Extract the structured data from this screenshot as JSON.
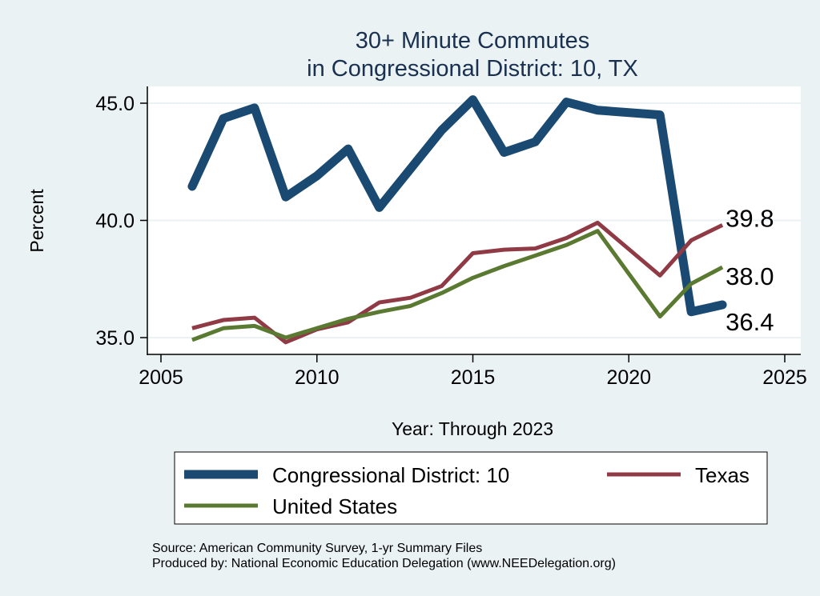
{
  "chart_data": {
    "type": "line",
    "title": [
      "30+ Minute Commutes",
      "in Congressional District:  10, TX"
    ],
    "xlabel": "Year: Through 2023",
    "ylabel": "Percent",
    "xlim": [
      2005,
      2025
    ],
    "ylim": [
      35,
      45
    ],
    "xticks": [
      2005,
      2010,
      2015,
      2020,
      2025
    ],
    "yticks": [
      "35.0",
      "40.0",
      "45.0"
    ],
    "grid": true,
    "legend_position": "bottom",
    "x": [
      2006,
      2007,
      2008,
      2009,
      2010,
      2011,
      2012,
      2013,
      2014,
      2015,
      2016,
      2017,
      2018,
      2019,
      2021,
      2022,
      2023
    ],
    "series": [
      {
        "name": "Congressional District:  10",
        "color": "#1a4a72",
        "values": [
          41.45,
          44.35,
          44.8,
          41.0,
          41.9,
          43.05,
          40.55,
          42.2,
          43.85,
          45.15,
          42.9,
          43.35,
          45.05,
          44.7,
          44.5,
          36.1,
          36.4
        ],
        "end_label": "36.4"
      },
      {
        "name": "Texas",
        "color": "#8f3a44",
        "values": [
          35.4,
          35.75,
          35.85,
          34.8,
          35.35,
          35.65,
          36.5,
          36.7,
          37.2,
          38.6,
          38.75,
          38.8,
          39.25,
          39.9,
          37.65,
          39.15,
          39.8
        ],
        "end_label": "39.8"
      },
      {
        "name": "United States",
        "color": "#5a7a32",
        "values": [
          34.9,
          35.4,
          35.5,
          35.0,
          35.4,
          35.8,
          36.1,
          36.35,
          36.9,
          37.55,
          38.05,
          38.5,
          38.95,
          39.55,
          35.9,
          37.3,
          38.0
        ],
        "end_label": "38.0"
      }
    ],
    "source": "Source: American Community Survey, 1-yr Summary Files",
    "produced_by": "Produced by: National Economic Education Delegation (www.NEEDelegation.org)"
  }
}
